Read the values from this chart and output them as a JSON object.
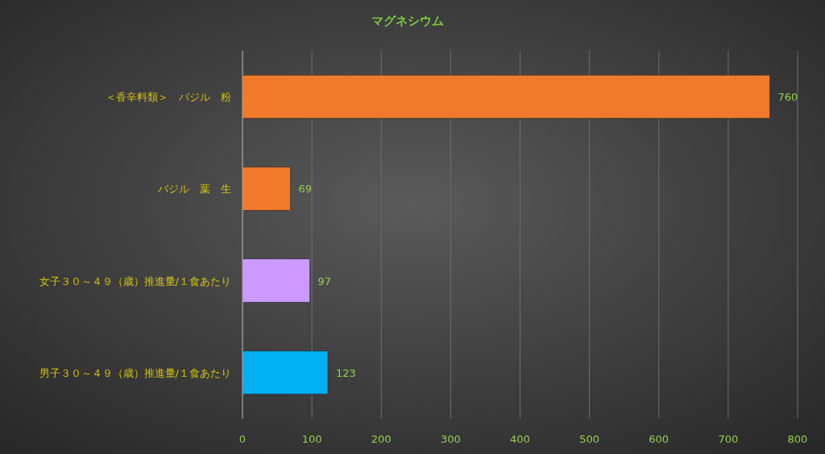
{
  "chart_data": {
    "type": "bar",
    "orientation": "horizontal",
    "title": "マグネシウム",
    "categories": [
      "＜香辛料類＞　バジル　粉",
      "バジル　葉　生",
      "女子３０～４９（歳）推進量/１食あたり",
      "男子３０～４９（歳）推進量/１食あたり"
    ],
    "values": [
      760,
      69,
      97,
      123
    ],
    "colors": [
      "#f07a2a",
      "#f07a2a",
      "#cc99ff",
      "#00b0f0"
    ],
    "xlim": [
      0,
      800
    ],
    "xticks": [
      0,
      100,
      200,
      300,
      400,
      500,
      600,
      700,
      800
    ],
    "grid": "x",
    "data_labels": true
  }
}
